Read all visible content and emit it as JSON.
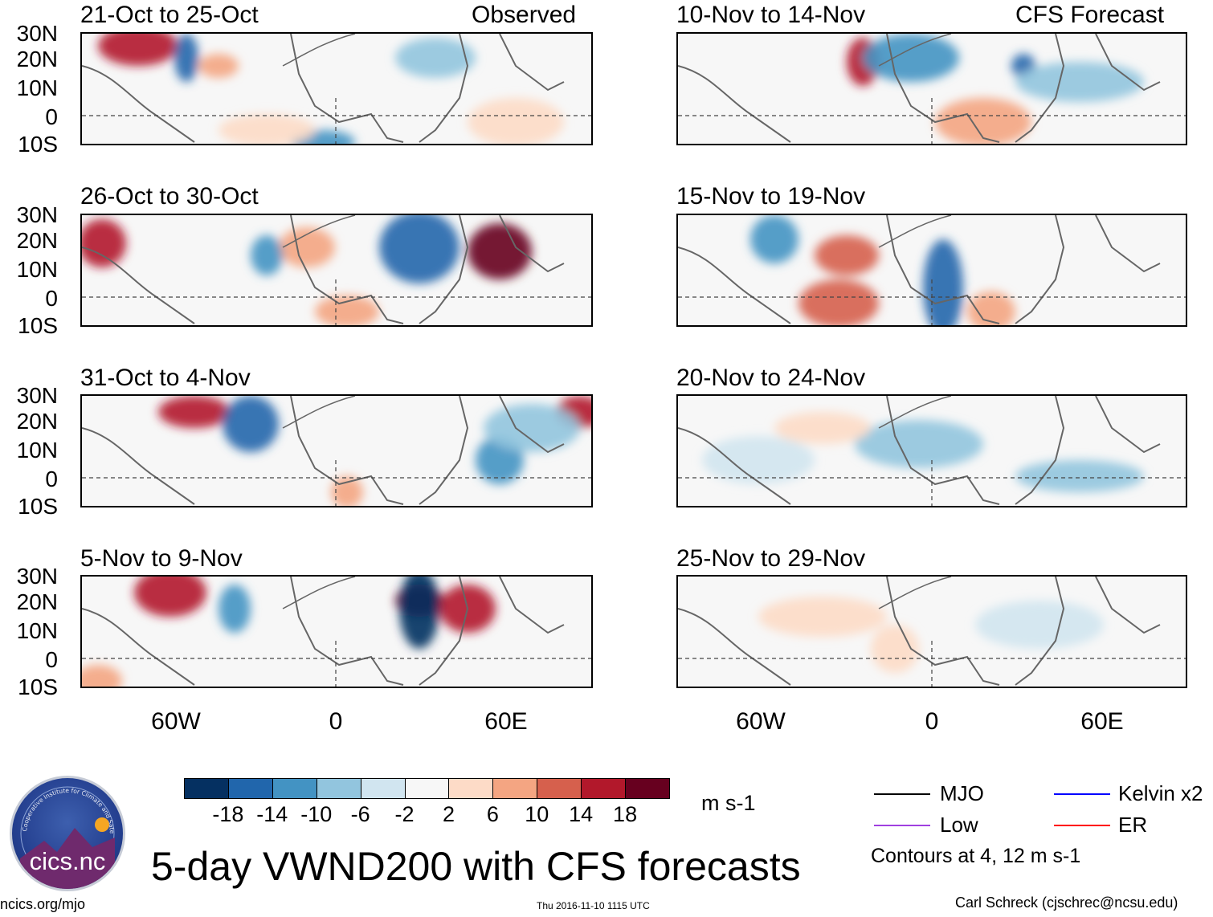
{
  "header": {
    "left_mode": "Observed",
    "right_mode": "CFS Forecast"
  },
  "panels_left": [
    {
      "period": "21-Oct to 25-Oct"
    },
    {
      "period": "26-Oct to 30-Oct"
    },
    {
      "period": "31-Oct to 4-Nov"
    },
    {
      "period": "5-Nov to 9-Nov"
    }
  ],
  "panels_right": [
    {
      "period": "10-Nov to 14-Nov"
    },
    {
      "period": "15-Nov to 19-Nov"
    },
    {
      "period": "20-Nov to 24-Nov"
    },
    {
      "period": "25-Nov to 29-Nov"
    }
  ],
  "lat_labels": [
    "30N",
    "20N",
    "10N",
    "0",
    "10S"
  ],
  "lon_labels": [
    "60W",
    "0",
    "60E"
  ],
  "colorbar": {
    "units": "m s-1",
    "labels": [
      "-18",
      "-14",
      "-10",
      "-6",
      "-2",
      "2",
      "6",
      "10",
      "14",
      "18"
    ],
    "colors": [
      "#053061",
      "#2166ac",
      "#4393c3",
      "#92c5de",
      "#d1e5f0",
      "#f7f7f7",
      "#fddbc7",
      "#f4a582",
      "#d6604d",
      "#b2182b",
      "#67001f"
    ]
  },
  "legend": {
    "items": [
      {
        "label": "MJO",
        "color": "#000000"
      },
      {
        "label": "Kelvin x2",
        "color": "#0000ff"
      },
      {
        "label": "Low",
        "color": "#a040e0"
      },
      {
        "label": "ER",
        "color": "#ff0000"
      }
    ],
    "note": "Contours at 4, 12 m s-1"
  },
  "main_title": "5-day VWND200 with CFS forecasts",
  "logo_text": "cics.nc",
  "footer": {
    "left": "ncics.org/mjo",
    "center": "Thu 2016-11-10 1115 UTC",
    "right": "Carl Schreck (cjschrec@ncsu.edu)"
  }
}
